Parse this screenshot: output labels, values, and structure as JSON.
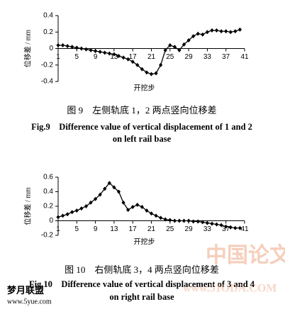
{
  "chart_data": [
    {
      "type": "line",
      "ylabel": "位移差 / mm",
      "xlabel": "开挖步",
      "caption_cn": "图 9　左侧轨底 1，2 两点竖向位移差",
      "caption_en": [
        "Fig.9　Difference value of vertical displacement of 1 and 2",
        "on left rail base"
      ],
      "x": [
        1,
        2,
        3,
        4,
        5,
        6,
        7,
        8,
        9,
        10,
        11,
        12,
        13,
        14,
        15,
        16,
        17,
        18,
        19,
        20,
        21,
        22,
        23,
        24,
        25,
        26,
        27,
        28,
        29,
        30,
        31,
        32,
        33,
        34,
        35,
        36,
        37,
        38,
        39,
        40
      ],
      "series": [
        {
          "color": "#000000",
          "values": [
            0.04,
            0.04,
            0.03,
            0.02,
            0.01,
            0.0,
            -0.01,
            -0.02,
            -0.03,
            -0.04,
            -0.05,
            -0.06,
            -0.07,
            -0.09,
            -0.11,
            -0.13,
            -0.16,
            -0.2,
            -0.25,
            -0.29,
            -0.31,
            -0.3,
            -0.2,
            -0.02,
            0.04,
            0.02,
            -0.02,
            0.05,
            0.1,
            0.15,
            0.18,
            0.17,
            0.2,
            0.22,
            0.22,
            0.21,
            0.21,
            0.2,
            0.21,
            0.23
          ]
        }
      ],
      "xlim": [
        1,
        41
      ],
      "xticks": [
        1,
        5,
        9,
        13,
        17,
        21,
        25,
        29,
        33,
        37,
        41
      ],
      "ylim": [
        -0.4,
        0.4
      ],
      "yticks": [
        -0.4,
        -0.2,
        0,
        0.2,
        0.4
      ]
    },
    {
      "type": "line",
      "ylabel": "位移差 / mm",
      "xlabel": "开挖步",
      "caption_cn": "图 10　右侧轨底 3，4 两点竖向位移差",
      "caption_en": [
        "Fig.10　Difference value of vertical displacement of 3 and 4",
        "on right rail base"
      ],
      "x": [
        1,
        2,
        3,
        4,
        5,
        6,
        7,
        8,
        9,
        10,
        11,
        12,
        13,
        14,
        15,
        16,
        17,
        18,
        19,
        20,
        21,
        22,
        23,
        24,
        25,
        26,
        27,
        28,
        29,
        30,
        31,
        32,
        33,
        34,
        35,
        36,
        37,
        38,
        39,
        40
      ],
      "series": [
        {
          "color": "#000000",
          "values": [
            0.05,
            0.07,
            0.09,
            0.12,
            0.14,
            0.17,
            0.2,
            0.25,
            0.3,
            0.36,
            0.44,
            0.52,
            0.46,
            0.4,
            0.25,
            0.15,
            0.19,
            0.22,
            0.19,
            0.14,
            0.1,
            0.07,
            0.04,
            0.02,
            0.01,
            0.0,
            0.0,
            0.0,
            0.0,
            -0.01,
            -0.01,
            -0.02,
            -0.03,
            -0.04,
            -0.05,
            -0.06,
            -0.08,
            -0.09,
            -0.1,
            -0.1
          ]
        }
      ],
      "xlim": [
        1,
        41
      ],
      "xticks": [
        1,
        5,
        9,
        13,
        17,
        21,
        25,
        29,
        33,
        37,
        41
      ],
      "ylim": [
        -0.2,
        0.6
      ],
      "yticks": [
        -0.2,
        0,
        0.2,
        0.4,
        0.6
      ]
    }
  ],
  "watermark": {
    "main": "中国论文下载",
    "url": "www.51ODA.COM",
    "site": "梦月联盟",
    "site_url": "www.5yue.com"
  }
}
